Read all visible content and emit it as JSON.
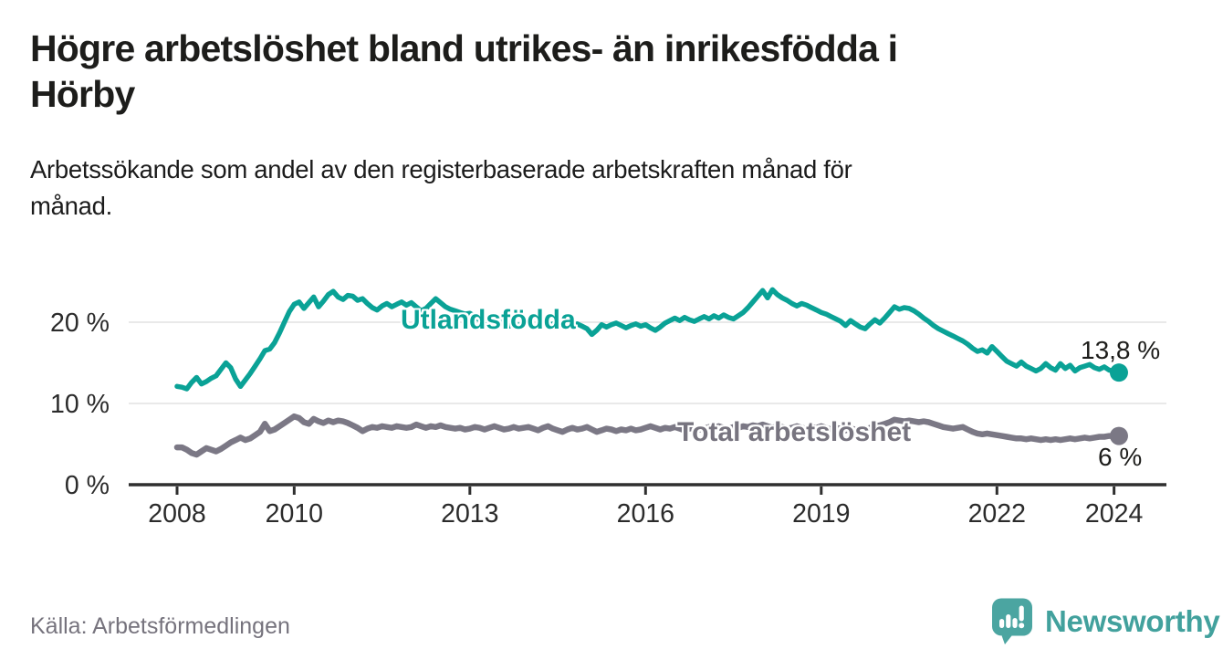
{
  "header": {
    "title_lines": [
      "Högre arbetslöshet bland utrikes- än inrikesfödda i",
      "Hörby"
    ],
    "subtitle_lines": [
      "Arbetssökande som andel av den registerbaserade arbetskraften månad för",
      "månad."
    ]
  },
  "chart_data": {
    "type": "line",
    "title": "Högre arbetslöshet bland utrikes- än inrikesfödda i Hörby",
    "subtitle": "Arbetssökande som andel av den registerbaserade arbetskraften månad för månad.",
    "x_start": "2008-01",
    "x_step": "1 month",
    "x_end": "2024-02",
    "grid": "horizontal-only",
    "legend_position": "inline-on-line",
    "y_axis": {
      "range": [
        0,
        25
      ],
      "ticks": [
        {
          "value": 0,
          "label": "0 %"
        },
        {
          "value": 10,
          "label": "10 %"
        },
        {
          "value": 20,
          "label": "20 %"
        }
      ]
    },
    "x_axis": {
      "ticks": [
        {
          "year": 2008,
          "label": "2008"
        },
        {
          "year": 2010,
          "label": "2010"
        },
        {
          "year": 2013,
          "label": "2013"
        },
        {
          "year": 2016,
          "label": "2016"
        },
        {
          "year": 2019,
          "label": "2019"
        },
        {
          "year": 2022,
          "label": "2022"
        },
        {
          "year": 2024,
          "label": "2024"
        }
      ]
    },
    "series": [
      {
        "name": "Utlandsfödda",
        "color": "#0aa296",
        "stroke_width": 5.5,
        "end_label": "13,8 %",
        "end_value": 13.8,
        "values": [
          12.1,
          12.0,
          11.8,
          12.6,
          13.2,
          12.4,
          12.7,
          13.1,
          13.4,
          14.2,
          15.0,
          14.4,
          13.0,
          12.1,
          12.9,
          13.7,
          14.6,
          15.5,
          16.5,
          16.7,
          17.5,
          18.7,
          20.0,
          21.3,
          22.2,
          22.5,
          21.7,
          22.4,
          23.1,
          21.9,
          22.6,
          23.4,
          23.8,
          23.1,
          22.8,
          23.3,
          23.2,
          22.7,
          22.9,
          22.3,
          21.8,
          21.5,
          22.0,
          22.3,
          21.9,
          22.2,
          22.5,
          22.1,
          22.4,
          21.9,
          21.4,
          21.7,
          22.3,
          22.9,
          22.4,
          21.9,
          21.6,
          21.4,
          21.2,
          21.0,
          21.1,
          20.7,
          20.3,
          19.8,
          19.6,
          19.9,
          20.1,
          19.7,
          19.5,
          19.8,
          19.6,
          19.9,
          19.7,
          19.4,
          19.6,
          19.9,
          19.5,
          19.8,
          19.4,
          19.6,
          19.3,
          19.6,
          19.8,
          19.5,
          19.2,
          18.5,
          19.0,
          19.7,
          19.4,
          19.7,
          19.9,
          19.6,
          19.3,
          19.6,
          19.8,
          19.5,
          19.7,
          19.3,
          19.0,
          19.4,
          19.9,
          20.2,
          20.5,
          20.2,
          20.6,
          20.3,
          20.1,
          20.4,
          20.7,
          20.4,
          20.8,
          20.5,
          20.9,
          20.6,
          20.4,
          20.8,
          21.2,
          21.8,
          22.5,
          23.2,
          23.9,
          23.0,
          24.0,
          23.4,
          23.0,
          22.7,
          22.3,
          22.0,
          22.3,
          22.1,
          21.8,
          21.5,
          21.2,
          21.0,
          20.7,
          20.4,
          20.1,
          19.6,
          20.2,
          19.8,
          19.4,
          19.2,
          19.8,
          20.3,
          19.9,
          20.5,
          21.2,
          21.9,
          21.6,
          21.8,
          21.7,
          21.4,
          21.0,
          20.5,
          20.1,
          19.6,
          19.2,
          18.9,
          18.6,
          18.3,
          18.0,
          17.7,
          17.3,
          16.8,
          16.4,
          16.6,
          16.2,
          17.0,
          16.4,
          15.8,
          15.2,
          14.9,
          14.6,
          15.1,
          14.6,
          14.3,
          14.0,
          14.3,
          14.9,
          14.4,
          14.1,
          14.9,
          14.3,
          14.7,
          14.0,
          14.4,
          14.6,
          14.8,
          14.4,
          14.2,
          14.5,
          14.1,
          14.0,
          13.8
        ]
      },
      {
        "name": "Total arbetslöshet",
        "color": "#7b7885",
        "stroke_width": 6.5,
        "end_label": "6 %",
        "end_value": 6.0,
        "values": [
          4.6,
          4.6,
          4.3,
          3.9,
          3.7,
          4.1,
          4.5,
          4.3,
          4.1,
          4.4,
          4.8,
          5.2,
          5.5,
          5.8,
          5.5,
          5.7,
          6.1,
          6.5,
          7.5,
          6.6,
          6.8,
          7.2,
          7.6,
          8.0,
          8.4,
          8.2,
          7.7,
          7.5,
          8.1,
          7.8,
          7.6,
          7.9,
          7.7,
          7.9,
          7.8,
          7.6,
          7.3,
          7.0,
          6.6,
          6.9,
          7.1,
          7.0,
          7.2,
          7.1,
          7.0,
          7.2,
          7.1,
          7.0,
          7.1,
          7.4,
          7.2,
          7.0,
          7.2,
          7.1,
          7.3,
          7.1,
          7.0,
          6.9,
          7.0,
          6.8,
          6.9,
          7.1,
          7.0,
          6.8,
          7.0,
          7.2,
          7.0,
          6.8,
          6.9,
          7.1,
          6.9,
          7.0,
          7.1,
          6.9,
          6.7,
          7.0,
          7.2,
          6.9,
          6.7,
          6.5,
          6.8,
          7.0,
          6.8,
          6.9,
          7.1,
          6.8,
          6.5,
          6.7,
          6.9,
          6.8,
          6.6,
          6.8,
          6.7,
          6.9,
          6.7,
          6.8,
          7.0,
          7.2,
          7.0,
          6.8,
          7.0,
          6.9,
          7.1,
          6.9,
          6.7,
          6.9,
          7.0,
          6.8,
          6.9,
          7.1,
          7.0,
          7.2,
          7.0,
          6.9,
          7.1,
          7.0,
          7.2,
          7.1,
          7.3,
          7.2,
          7.4,
          7.2,
          7.0,
          7.2,
          7.1,
          6.9,
          7.0,
          7.2,
          7.0,
          6.9,
          7.1,
          7.0,
          7.2,
          7.0,
          6.8,
          7.0,
          6.9,
          6.7,
          6.9,
          6.8,
          6.6,
          6.8,
          7.0,
          7.2,
          7.3,
          7.5,
          7.7,
          8.0,
          7.9,
          7.8,
          7.9,
          7.8,
          7.7,
          7.8,
          7.7,
          7.5,
          7.3,
          7.1,
          7.0,
          6.9,
          7.0,
          7.1,
          6.8,
          6.5,
          6.3,
          6.2,
          6.3,
          6.2,
          6.1,
          6.0,
          5.9,
          5.8,
          5.7,
          5.7,
          5.6,
          5.7,
          5.6,
          5.5,
          5.6,
          5.5,
          5.6,
          5.5,
          5.6,
          5.7,
          5.6,
          5.7,
          5.8,
          5.7,
          5.8,
          5.9,
          5.9,
          6.0,
          6.0,
          6.0
        ]
      }
    ]
  },
  "footer": {
    "source": "Källa: Arbetsförmedlingen",
    "brand_name": "Newsworthy"
  },
  "colors": {
    "series_utlandsfodda": "#0aa296",
    "series_total": "#7b7885",
    "title_text": "#1d1d1b",
    "axis_text": "#2b2b2b",
    "gridline": "#e2e2e2",
    "axis_line": "#2f2f2f",
    "source_text": "#76737d",
    "brand_teal": "#4ba5a1"
  }
}
